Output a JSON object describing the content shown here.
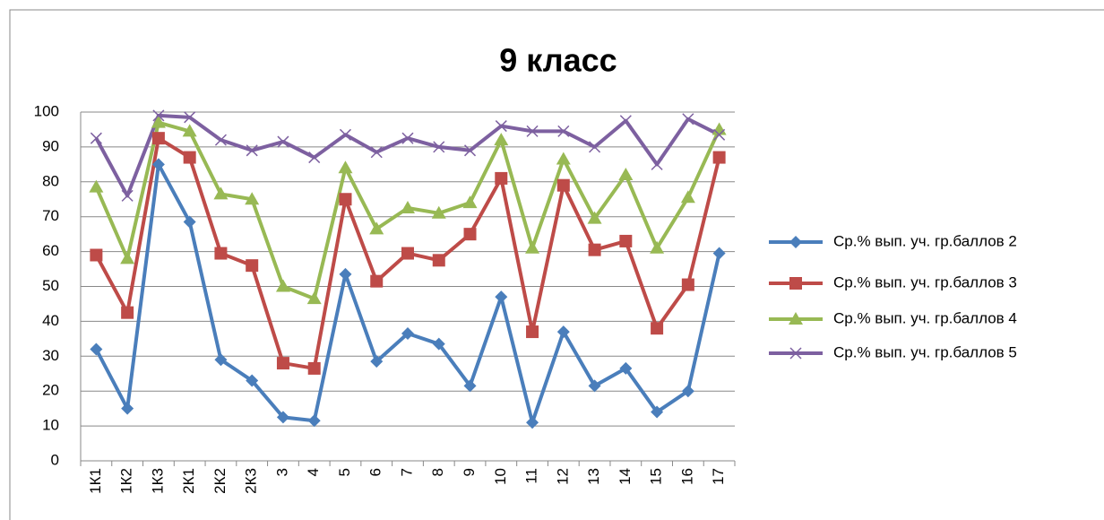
{
  "chart_data": {
    "type": "line",
    "title": "9 класс",
    "categories": [
      "1К1",
      "1К2",
      "1К3",
      "2К1",
      "2К2",
      "2К3",
      "3",
      "4",
      "5",
      "6",
      "7",
      "8",
      "9",
      "10",
      "11",
      "12",
      "13",
      "14",
      "15",
      "16",
      "17"
    ],
    "series": [
      {
        "name": "Ср.% вып. уч. гр.баллов 2",
        "color": "#4a7ebb",
        "marker": "diamond",
        "values": [
          32,
          15,
          85,
          68.5,
          29,
          23,
          12.5,
          11.5,
          53.5,
          28.5,
          36.5,
          33.5,
          21.5,
          47,
          11,
          37,
          21.5,
          26.5,
          14,
          20,
          59.5
        ]
      },
      {
        "name": "Ср.% вып. уч. гр.баллов 3",
        "color": "#be4b48",
        "marker": "square",
        "values": [
          59,
          42.5,
          92.5,
          87,
          59.5,
          56,
          28,
          26.5,
          75,
          51.5,
          59.5,
          57.5,
          65,
          81,
          37,
          79,
          60.5,
          63,
          38,
          50.5,
          87
        ]
      },
      {
        "name": "Ср.% вып. уч. гр.баллов 4",
        "color": "#98b954",
        "marker": "triangle",
        "values": [
          78.5,
          58,
          97,
          94.5,
          76.5,
          75,
          50,
          46.5,
          84,
          66.5,
          72.5,
          71,
          74,
          92,
          61,
          86.5,
          69.5,
          82,
          61,
          75.5,
          95
        ]
      },
      {
        "name": "Ср.% вып. уч. гр.баллов 5",
        "color": "#7d60a0",
        "marker": "x",
        "values": [
          92.5,
          76,
          99,
          98.5,
          92,
          89,
          91.5,
          87,
          93.5,
          88.5,
          92.5,
          90,
          89,
          96,
          94.5,
          94.5,
          90,
          97.5,
          85,
          98,
          93.5
        ]
      }
    ],
    "ylim": [
      0,
      100
    ],
    "yticks": [
      0,
      10,
      20,
      30,
      40,
      50,
      60,
      70,
      80,
      90,
      100
    ],
    "grid": true,
    "legend": "right"
  }
}
